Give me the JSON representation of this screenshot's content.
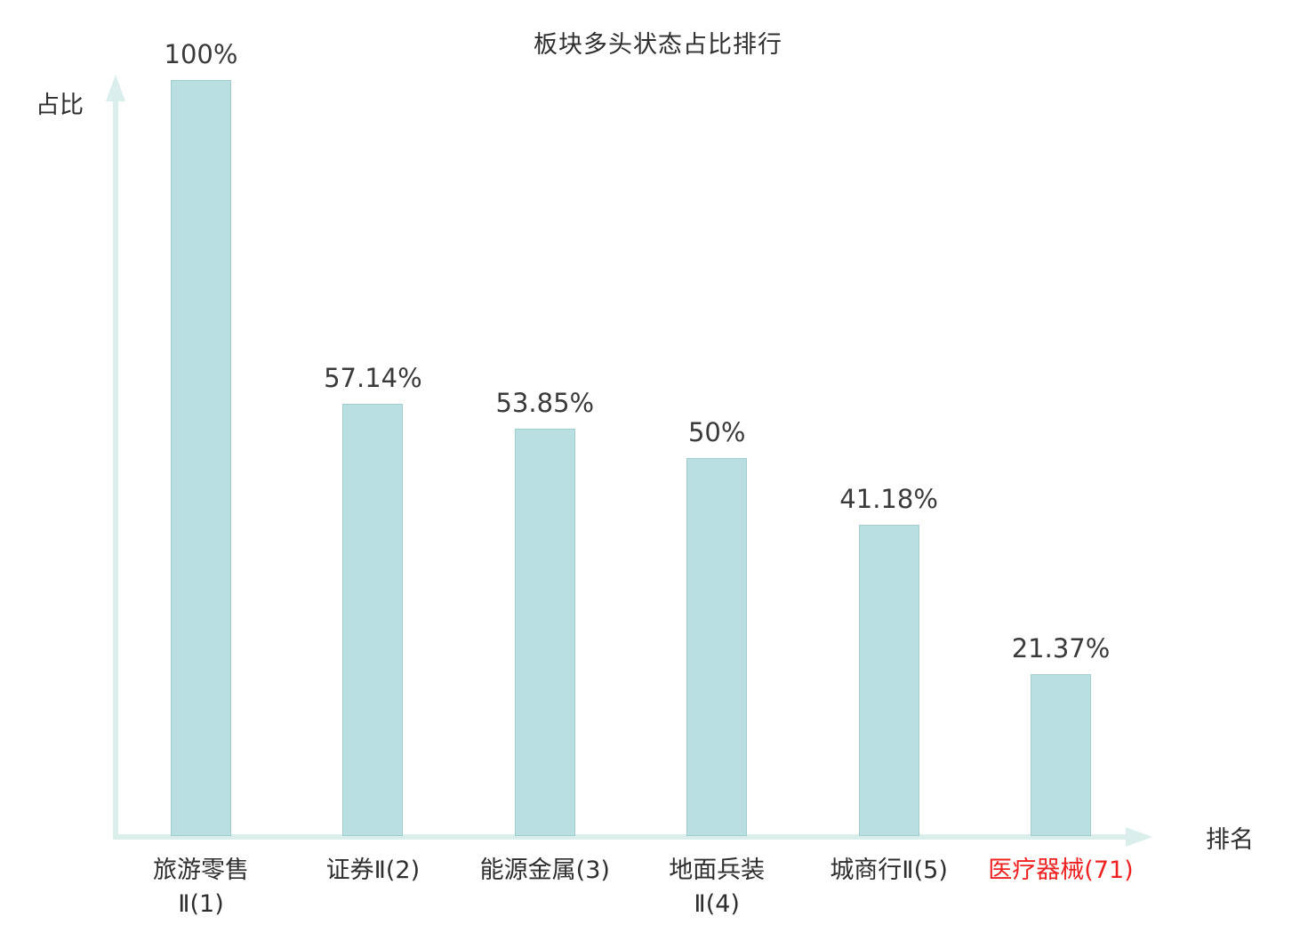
{
  "chart_data": {
    "type": "bar",
    "title": "板块多头状态占比排行",
    "xlabel": "排名",
    "ylabel": "占比",
    "categories": [
      "旅游零售Ⅱ(1)",
      "证券Ⅱ(2)",
      "能源金属(3)",
      "地面兵装Ⅱ(4)",
      "城商行Ⅱ(5)",
      "医疗器械(71)"
    ],
    "category_lines": [
      [
        "旅游零售",
        "Ⅱ(1)"
      ],
      [
        "证券Ⅱ(2)"
      ],
      [
        "能源金属(3)"
      ],
      [
        "地面兵装",
        "Ⅱ(4)"
      ],
      [
        "城商行Ⅱ(5)"
      ],
      [
        "医疗器械(71)"
      ]
    ],
    "values": [
      100,
      57.14,
      53.85,
      50,
      41.18,
      21.37
    ],
    "value_labels": [
      "100%",
      "57.14%",
      "53.85%",
      "50%",
      "41.18%",
      "21.37%"
    ],
    "ranks": [
      1,
      2,
      3,
      4,
      5,
      71
    ],
    "highlight_index": 5,
    "ylim": [
      0,
      100
    ],
    "grid": false,
    "legend": false,
    "colors": {
      "bar_fill": "#b9dfe1",
      "axis": "#daeeec",
      "text": "#3a3a3a",
      "highlight": "#ee2222"
    }
  }
}
